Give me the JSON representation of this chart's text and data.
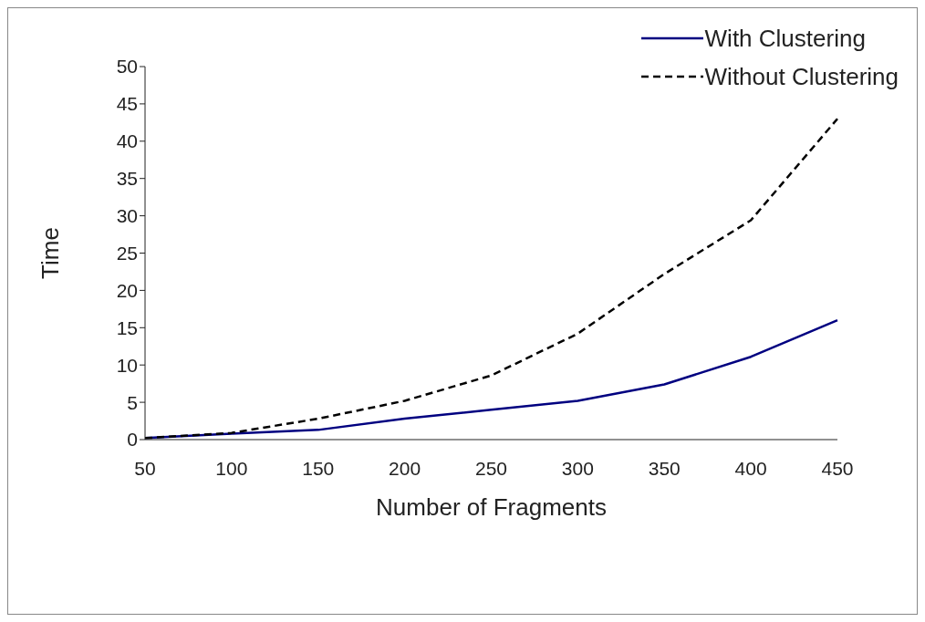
{
  "chart_data": {
    "type": "line",
    "xlabel": "Number of Fragments",
    "ylabel": "Time",
    "categories": [
      "50",
      "100",
      "150",
      "200",
      "250",
      "300",
      "350",
      "400",
      "450"
    ],
    "series": [
      {
        "name": "With Clustering",
        "color": "#000080",
        "line_style": "solid",
        "values": [
          0.2,
          0.8,
          1.3,
          2.8,
          4.0,
          5.2,
          7.4,
          11.1,
          16.0
        ]
      },
      {
        "name": "Without Clustering",
        "color": "#000000",
        "line_style": "dashed",
        "values": [
          0.2,
          0.9,
          2.8,
          5.2,
          8.6,
          14.2,
          22.2,
          29.4,
          43.0
        ]
      }
    ],
    "ylim": [
      0,
      50
    ],
    "yticks": [
      0,
      5,
      10,
      15,
      20,
      25,
      30,
      35,
      40,
      45,
      50
    ],
    "grid": false,
    "legend": "top right",
    "marker": "none"
  }
}
